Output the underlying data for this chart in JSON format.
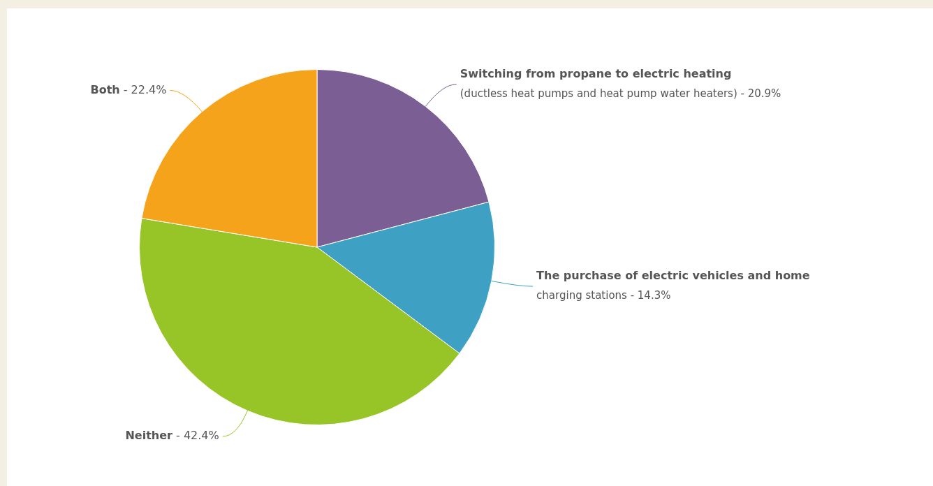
{
  "chart_data": {
    "type": "pie",
    "categories": [
      "Switching from propane to electric heating\n(ductless heat pumps and heat pump water heaters) -",
      "The purchase of electric vehicles and home\ncharging stations -",
      "Neither -",
      "Both -"
    ],
    "values": [
      20.9,
      14.3,
      42.4,
      22.4
    ],
    "value_labels": [
      "20.9%",
      "14.3%",
      "42.4%",
      "22.4%"
    ],
    "colors": [
      "#7b5e93",
      "#3ea1c4",
      "#97c527",
      "#f4a31b"
    ],
    "legend": false
  }
}
